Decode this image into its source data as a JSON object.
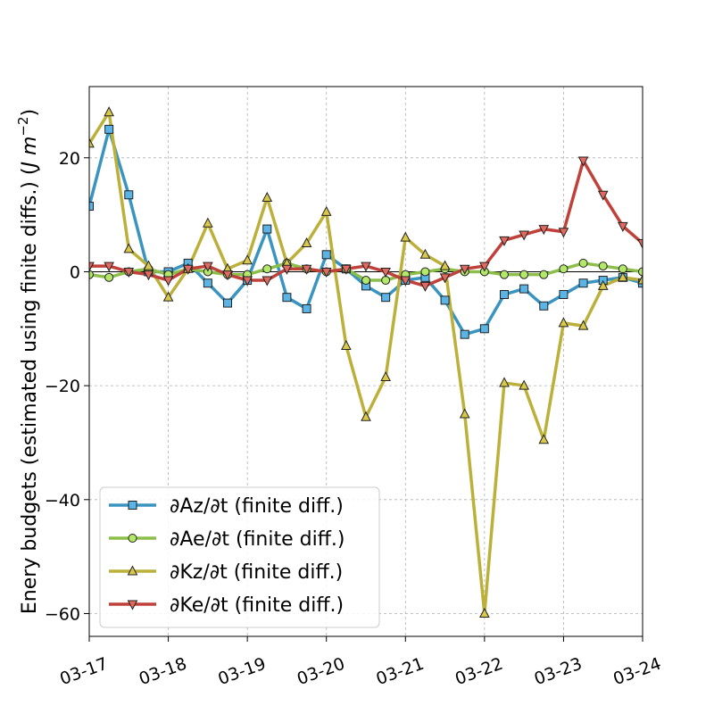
{
  "chart_data": {
    "type": "line",
    "title": "",
    "xlabel": "",
    "ylabel": "Enery budgets (estimated using finite diffs.) (",
    "ylabel_unit_base": "J m",
    "ylabel_unit_exp": "−2",
    "ylabel_close": ")",
    "xlim": [
      "2018-03-17T00:00",
      "2018-03-24T00:00"
    ],
    "ylim": [
      -64,
      32.5
    ],
    "x_tick_labels": [
      "03-17",
      "03-18",
      "03-19",
      "03-20",
      "03-21",
      "03-22",
      "03-23",
      "03-24"
    ],
    "y_ticks": [
      -60,
      -40,
      -20,
      0,
      20
    ],
    "y_tick_labels": [
      "−60",
      "−40",
      "−20",
      "0",
      "20"
    ],
    "grid": true,
    "zero_line": true,
    "legend_position": "lower-left",
    "x": [
      "2018-03-17T00:00",
      "2018-03-17T06:00",
      "2018-03-17T12:00",
      "2018-03-17T18:00",
      "2018-03-18T00:00",
      "2018-03-18T06:00",
      "2018-03-18T12:00",
      "2018-03-18T18:00",
      "2018-03-19T00:00",
      "2018-03-19T06:00",
      "2018-03-19T12:00",
      "2018-03-19T18:00",
      "2018-03-20T00:00",
      "2018-03-20T06:00",
      "2018-03-20T12:00",
      "2018-03-20T18:00",
      "2018-03-21T00:00",
      "2018-03-21T06:00",
      "2018-03-21T12:00",
      "2018-03-21T18:00",
      "2018-03-22T00:00",
      "2018-03-22T06:00",
      "2018-03-22T12:00",
      "2018-03-22T18:00",
      "2018-03-23T00:00",
      "2018-03-23T06:00",
      "2018-03-23T12:00",
      "2018-03-23T18:00",
      "2018-03-24T00:00"
    ],
    "series": [
      {
        "name": "∂Az/∂t (finite diff.)",
        "color": "#3a94c0",
        "marker": "square",
        "marker_fill": "#5ab4e5",
        "values": [
          11.5,
          25,
          13.5,
          0,
          0,
          1.5,
          -2,
          -5.5,
          -1.5,
          7.5,
          -4.5,
          -6.5,
          3,
          0.5,
          -2.5,
          -4.5,
          -1.5,
          -1,
          -5,
          -11,
          -10,
          -4,
          -3,
          -6,
          -4,
          -2,
          -1.5,
          -1,
          -2
        ]
      },
      {
        "name": "∂Ae/∂t (finite diff.)",
        "color": "#8cbf4a",
        "marker": "circle",
        "marker_fill": "#b3e86a",
        "values": [
          -0.5,
          -1,
          0,
          0.5,
          -0.5,
          0.5,
          0,
          -0.5,
          -0.5,
          0.5,
          1.5,
          0.5,
          0,
          0.5,
          -1.5,
          -1.5,
          -0.5,
          0,
          0.5,
          0,
          0,
          -0.5,
          -0.5,
          -0.5,
          0.5,
          1.5,
          1,
          0.5,
          0
        ]
      },
      {
        "name": "∂Kz/∂t (finite diff.)",
        "color": "#bcb03a",
        "marker": "triangle-up",
        "marker_fill": "#d9c84a",
        "values": [
          22.5,
          28,
          4,
          1,
          -4.5,
          0.5,
          8.5,
          0.5,
          2,
          13,
          1.5,
          5,
          10.5,
          -13,
          -25.5,
          -18.5,
          6,
          3,
          1,
          -25,
          -60,
          -19.5,
          -20,
          -29.5,
          -9,
          -9.5,
          -2.5,
          -1,
          -1.5
        ]
      },
      {
        "name": "∂Ke/∂t (finite diff.)",
        "color": "#c0403a",
        "marker": "triangle-down",
        "marker_fill": "#e06a60",
        "values": [
          1,
          1,
          0,
          -0.5,
          -1.5,
          0.5,
          1,
          -0.5,
          -1.5,
          -1.5,
          0.5,
          0.5,
          0,
          0.5,
          1,
          0,
          -1.5,
          -2.5,
          -1,
          0.5,
          1,
          5.5,
          6.5,
          7.5,
          7,
          19.5,
          13.5,
          8,
          5
        ]
      }
    ]
  }
}
